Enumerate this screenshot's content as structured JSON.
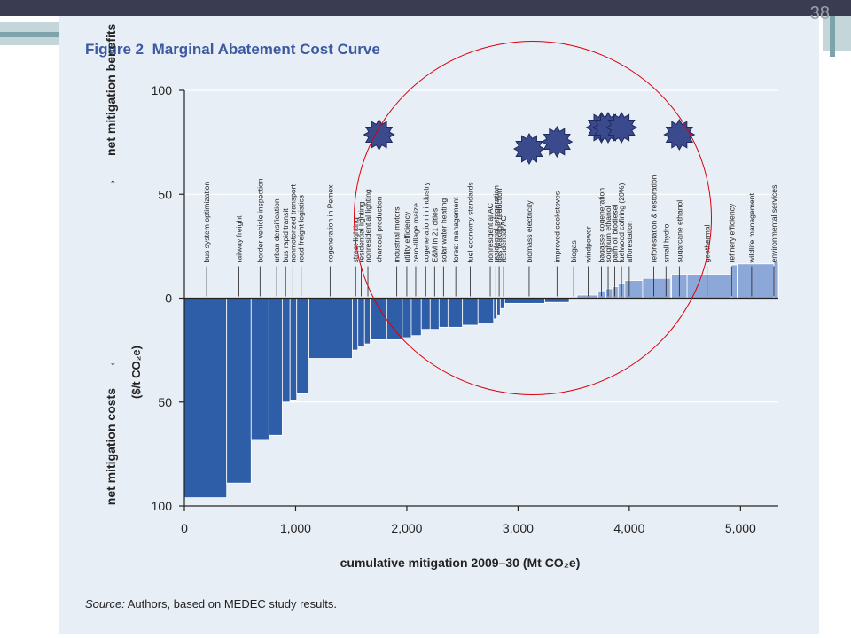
{
  "slide": {
    "page_number": "38"
  },
  "figure": {
    "title_prefix": "Figure 2",
    "title": "Marginal Abatement Cost Curve",
    "source_label": "Source:",
    "source_text": "Authors, based on MEDEC study results."
  },
  "colors": {
    "negative_bar": "#2e5ea8",
    "positive_bar": "#8ca8d8",
    "ellipse": "#d8000c",
    "star": "#3a4a8c",
    "panel_bg": "#e8eef6"
  },
  "chart_data": {
    "type": "bar",
    "x_label": "cumulative mitigation 2009–30 (Mt CO₂e)",
    "y_label_upper": "net mitigation benefits",
    "y_label_lower": "net mitigation costs",
    "y_label_unit": "($/t CO₂e)",
    "y_arrow_up": "→",
    "y_arrow_down": "←",
    "xlim": [
      0,
      5300
    ],
    "ylim": [
      -100,
      100
    ],
    "x_ticks": [
      {
        "value": 0,
        "label": "0"
      },
      {
        "value": 1000,
        "label": "1,000"
      },
      {
        "value": 2000,
        "label": "2,000"
      },
      {
        "value": 3000,
        "label": "3,000"
      },
      {
        "value": 4000,
        "label": "4,000"
      },
      {
        "value": 5000,
        "label": "5,000"
      }
    ],
    "y_ticks": [
      {
        "value": 100,
        "label": "100"
      },
      {
        "value": 50,
        "label": "50"
      },
      {
        "value": 0,
        "label": "0"
      },
      {
        "value": -50,
        "label": "50"
      },
      {
        "value": -100,
        "label": "100"
      }
    ],
    "bars": [
      {
        "label": "bus system optimization",
        "x0": 0,
        "x1": 380,
        "value": -96
      },
      {
        "label": "railway freight",
        "x0": 380,
        "x1": 600,
        "value": -89
      },
      {
        "label": "border vehicle inspection",
        "x0": 600,
        "x1": 760,
        "value": -68
      },
      {
        "label": "urban densification",
        "x0": 760,
        "x1": 880,
        "value": -66
      },
      {
        "label": "bus rapid transit",
        "x0": 880,
        "x1": 950,
        "value": -50
      },
      {
        "label": "nonmotorized transport",
        "x0": 950,
        "x1": 1010,
        "value": -49
      },
      {
        "label": "road freight logistics",
        "x0": 1010,
        "x1": 1120,
        "value": -46
      },
      {
        "label": "cogeneration in Pemex",
        "x0": 1120,
        "x1": 1510,
        "value": -29
      },
      {
        "label": "street lighting",
        "x0": 1510,
        "x1": 1560,
        "value": -25
      },
      {
        "label": "residential lighting",
        "x0": 1560,
        "x1": 1620,
        "value": -23
      },
      {
        "label": "nonresidential lighting",
        "x0": 1620,
        "x1": 1670,
        "value": -22
      },
      {
        "label": "charcoal production",
        "x0": 1670,
        "x1": 1820,
        "value": -20
      },
      {
        "label": "industrial motors",
        "x0": 1820,
        "x1": 1960,
        "value": -20
      },
      {
        "label": "utility efficiency",
        "x0": 1960,
        "x1": 2040,
        "value": -19
      },
      {
        "label": "zero-tillage maize",
        "x0": 2040,
        "x1": 2130,
        "value": -18
      },
      {
        "label": "cogeneration in industry",
        "x0": 2130,
        "x1": 2210,
        "value": -15
      },
      {
        "label": "E&M in 21 cities",
        "x0": 2210,
        "x1": 2290,
        "value": -15
      },
      {
        "label": "solar water heating",
        "x0": 2290,
        "x1": 2370,
        "value": -14
      },
      {
        "label": "forest management",
        "x0": 2370,
        "x1": 2500,
        "value": -14
      },
      {
        "label": "fuel economy standards",
        "x0": 2500,
        "x1": 2640,
        "value": -13
      },
      {
        "label": "nonresidential AC",
        "x0": 2640,
        "x1": 2780,
        "value": -12
      },
      {
        "label": "residential refrigeration",
        "x0": 2780,
        "x1": 2810,
        "value": -10
      },
      {
        "label": "gas leakage reduction",
        "x0": 2810,
        "x1": 2840,
        "value": -8
      },
      {
        "label": "residential AC",
        "x0": 2840,
        "x1": 2880,
        "value": -5
      },
      {
        "label": "biomass electricity",
        "x0": 2880,
        "x1": 3240,
        "value": -2.5
      },
      {
        "label": "improved cookstoves",
        "x0": 3240,
        "x1": 3460,
        "value": -2
      },
      {
        "label": "biogas",
        "x0": 3460,
        "x1": 3530,
        "value": 0.5
      },
      {
        "label": "windpower",
        "x0": 3530,
        "x1": 3720,
        "value": 1.5
      },
      {
        "label": "bagasse cogeneration",
        "x0": 3720,
        "x1": 3790,
        "value": 3.5
      },
      {
        "label": "sorghum ethanol",
        "x0": 3790,
        "x1": 3850,
        "value": 4.5
      },
      {
        "label": "palm oil biodiesel",
        "x0": 3850,
        "x1": 3900,
        "value": 5.5
      },
      {
        "label": "fuelwood cofiring (20%)",
        "x0": 3900,
        "x1": 3960,
        "value": 7
      },
      {
        "label": "afforestation",
        "x0": 3960,
        "x1": 4120,
        "value": 8.5
      },
      {
        "label": "reforestation & restoration",
        "x0": 4120,
        "x1": 4370,
        "value": 9.5
      },
      {
        "label": "small hydro",
        "x0": 4370,
        "x1": 4380,
        "value": 11
      },
      {
        "label": "sugarcane ethanol",
        "x0": 4380,
        "x1": 4520,
        "value": 11.5
      },
      {
        "label": "geothermal",
        "x0": 4520,
        "x1": 4920,
        "value": 11.5
      },
      {
        "label": "refinery efficiency",
        "x0": 4920,
        "x1": 4970,
        "value": 16
      },
      {
        "label": "wildlife management",
        "x0": 4970,
        "x1": 5300,
        "value": 16.5
      },
      {
        "label": "environmental services",
        "x0": 5300,
        "x1": 5340,
        "value": 17.5
      }
    ],
    "labels": [
      {
        "text": "bus system optimization",
        "x": 200
      },
      {
        "text": "railway freight",
        "x": 490
      },
      {
        "text": "border vehicle inspection",
        "x": 680
      },
      {
        "text": "urban densification",
        "x": 830
      },
      {
        "text": "bus rapid transit",
        "x": 910
      },
      {
        "text": "nonmotorized transport",
        "x": 975
      },
      {
        "text": "road freight logistics",
        "x": 1050
      },
      {
        "text": "cogeneration in Pemex",
        "x": 1310
      },
      {
        "text": "street lighting",
        "x": 1540
      },
      {
        "text": "residential lighting",
        "x": 1590
      },
      {
        "text": "nonresidential lighting",
        "x": 1650
      },
      {
        "text": "charcoal production",
        "x": 1750
      },
      {
        "text": "industrial motors",
        "x": 1910
      },
      {
        "text": "utility efficiency",
        "x": 2000
      },
      {
        "text": "zero-tillage maize",
        "x": 2080
      },
      {
        "text": "cogeneration in industry",
        "x": 2170
      },
      {
        "text": "E&M in 21 cities",
        "x": 2250
      },
      {
        "text": "solar water heating",
        "x": 2330
      },
      {
        "text": "forest management",
        "x": 2440
      },
      {
        "text": "fuel economy standards",
        "x": 2570
      },
      {
        "text": "nonresidential AC",
        "x": 2750
      },
      {
        "text": "residential refrigeration",
        "x": 2800
      },
      {
        "text": "gas leakage reduction",
        "x": 2830
      },
      {
        "text": "residential AC",
        "x": 2870
      },
      {
        "text": "biomass electricity",
        "x": 3100
      },
      {
        "text": "improved cookstoves",
        "x": 3350
      },
      {
        "text": "biogas",
        "x": 3500
      },
      {
        "text": "windpower",
        "x": 3630
      },
      {
        "text": "bagasse cogeneration",
        "x": 3750
      },
      {
        "text": "sorghum ethanol",
        "x": 3810
      },
      {
        "text": "palm oil biodiesel",
        "x": 3870
      },
      {
        "text": "fuelwood cofiring (20%)",
        "x": 3930
      },
      {
        "text": "afforestation",
        "x": 4000
      },
      {
        "text": "reforestation & restoration",
        "x": 4220
      },
      {
        "text": "small hydro",
        "x": 4330
      },
      {
        "text": "sugarcane ethanol",
        "x": 4450
      },
      {
        "text": "geothermal",
        "x": 4700
      },
      {
        "text": "refinery efficiency",
        "x": 4920
      },
      {
        "text": "wildlife management",
        "x": 5100
      },
      {
        "text": "environmental services",
        "x": 5300
      }
    ],
    "stars_at_labels": [
      "charcoal production",
      "biomass electricity",
      "improved cookstoves",
      "bagasse cogeneration",
      "sorghum ethanol",
      "fuelwood cofiring (20%)",
      "sugarcane ethanol"
    ]
  }
}
